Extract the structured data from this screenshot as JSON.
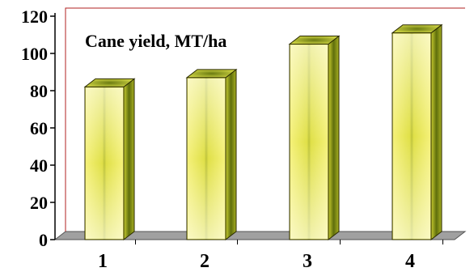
{
  "chart_data": {
    "type": "bar",
    "title": "Cane yield, MT/ha",
    "xlabel": "",
    "ylabel": "",
    "categories": [
      "1",
      "2",
      "3",
      "4"
    ],
    "values": [
      82,
      87,
      105,
      111
    ],
    "ylim": [
      0,
      120
    ],
    "yticks": [
      "0",
      "20",
      "40",
      "60",
      "80",
      "100",
      "120"
    ],
    "grid": false,
    "legend": "none",
    "style": "3d-cylinder-box",
    "colors": {
      "bar_light": "#fbfb9a",
      "bar_mid": "#e8e840",
      "bar_dark": "#6a7a10",
      "bar_side": "#a8b022",
      "bar_top": "#8a9618",
      "floor": "#a0a0a0",
      "frame": "#b22222"
    }
  }
}
